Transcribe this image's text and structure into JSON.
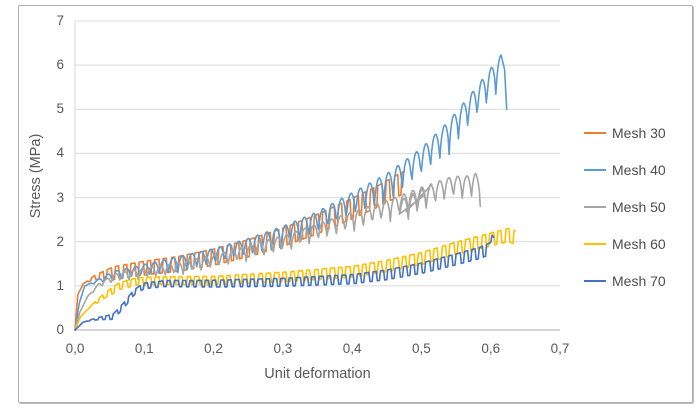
{
  "chart_data": {
    "type": "line",
    "title": "",
    "xlabel": "Unit deformation",
    "ylabel": "Stress (MPa)",
    "xlim": [
      0,
      0.7
    ],
    "ylim": [
      0,
      7
    ],
    "grid": "horizontal",
    "legend_position": "right",
    "decimal_separator": ",",
    "x_ticks": [
      0,
      0.1,
      0.2,
      0.3,
      0.4,
      0.5,
      0.6,
      0.7
    ],
    "x_tick_labels": [
      "0,0",
      "0,1",
      "0,2",
      "0,3",
      "0,4",
      "0,5",
      "0,6",
      "0,7"
    ],
    "y_ticks": [
      0,
      1,
      2,
      3,
      4,
      5,
      6,
      7
    ],
    "y_tick_labels": [
      "0",
      "1",
      "2",
      "3",
      "4",
      "5",
      "6",
      "7"
    ],
    "grid_color": "#D9D9D9",
    "axis_color": "#BFBFBF",
    "series": [
      {
        "name": "Mesh 30",
        "color": "#ED7D31",
        "trend_points": [
          [
            0,
            0
          ],
          [
            0.004,
            0.8
          ],
          [
            0.012,
            1.05
          ],
          [
            0.03,
            1.2
          ],
          [
            0.06,
            1.3
          ],
          [
            0.1,
            1.4
          ],
          [
            0.15,
            1.5
          ],
          [
            0.2,
            1.65
          ],
          [
            0.25,
            1.85
          ],
          [
            0.3,
            2.1
          ],
          [
            0.35,
            2.4
          ],
          [
            0.4,
            2.75
          ],
          [
            0.44,
            3.05
          ],
          [
            0.475,
            3.35
          ]
        ],
        "oscillation": {
          "shape": "square",
          "period": 0.0115,
          "amp_start": 0.26,
          "amp_end": 0.5
        }
      },
      {
        "name": "Mesh 40",
        "color": "#5B9BD5",
        "trend_points": [
          [
            0,
            0
          ],
          [
            0.006,
            0.6
          ],
          [
            0.014,
            1.0
          ],
          [
            0.05,
            1.15
          ],
          [
            0.1,
            1.3
          ],
          [
            0.15,
            1.45
          ],
          [
            0.2,
            1.6
          ],
          [
            0.25,
            1.8
          ],
          [
            0.3,
            2.05
          ],
          [
            0.35,
            2.35
          ],
          [
            0.4,
            2.75
          ],
          [
            0.45,
            3.15
          ],
          [
            0.5,
            3.7
          ],
          [
            0.54,
            4.3
          ],
          [
            0.58,
            5.05
          ],
          [
            0.615,
            5.75
          ],
          [
            0.62,
            5.9
          ],
          [
            0.623,
            5.0
          ]
        ],
        "oscillation": {
          "shape": "scallop",
          "period": 0.0135,
          "amp_start": 0.22,
          "amp_end": 0.85
        }
      },
      {
        "name": "Mesh 50",
        "color": "#A5A5A5",
        "trend_points": [
          [
            0,
            0
          ],
          [
            0.007,
            0.4
          ],
          [
            0.018,
            0.75
          ],
          [
            0.035,
            1.0
          ],
          [
            0.06,
            1.15
          ],
          [
            0.1,
            1.25
          ],
          [
            0.15,
            1.35
          ],
          [
            0.2,
            1.5
          ],
          [
            0.25,
            1.7
          ],
          [
            0.3,
            1.9
          ],
          [
            0.35,
            2.15
          ],
          [
            0.4,
            2.4
          ],
          [
            0.44,
            2.6
          ],
          [
            0.47,
            2.75
          ],
          [
            0.505,
            2.95
          ],
          [
            0.468,
            2.62
          ],
          [
            0.515,
            3.0
          ],
          [
            0.478,
            2.68
          ],
          [
            0.525,
            3.05
          ],
          [
            0.545,
            3.15
          ],
          [
            0.565,
            3.15
          ],
          [
            0.578,
            3.2
          ],
          [
            0.585,
            3.05
          ]
        ],
        "oscillation": {
          "shape": "scallop",
          "period": 0.013,
          "amp_start": 0.2,
          "amp_end": 0.6
        }
      },
      {
        "name": "Mesh 60",
        "color": "#FFC000",
        "trend_points": [
          [
            0,
            0
          ],
          [
            0.008,
            0.3
          ],
          [
            0.02,
            0.5
          ],
          [
            0.04,
            0.75
          ],
          [
            0.065,
            1.0
          ],
          [
            0.09,
            1.1
          ],
          [
            0.12,
            1.12
          ],
          [
            0.2,
            1.12
          ],
          [
            0.3,
            1.2
          ],
          [
            0.4,
            1.32
          ],
          [
            0.45,
            1.45
          ],
          [
            0.5,
            1.62
          ],
          [
            0.55,
            1.85
          ],
          [
            0.6,
            2.05
          ],
          [
            0.625,
            2.15
          ],
          [
            0.635,
            2.1
          ]
        ],
        "oscillation": {
          "shape": "square",
          "period": 0.0115,
          "amp_start": 0.14,
          "amp_end": 0.3
        }
      },
      {
        "name": "Mesh 70",
        "color": "#4472C4",
        "trend_points": [
          [
            0,
            0
          ],
          [
            0.012,
            0.18
          ],
          [
            0.03,
            0.25
          ],
          [
            0.055,
            0.3
          ],
          [
            0.07,
            0.55
          ],
          [
            0.085,
            0.85
          ],
          [
            0.1,
            1.0
          ],
          [
            0.13,
            1.05
          ],
          [
            0.2,
            1.05
          ],
          [
            0.3,
            1.08
          ],
          [
            0.4,
            1.15
          ],
          [
            0.45,
            1.25
          ],
          [
            0.5,
            1.4
          ],
          [
            0.55,
            1.6
          ],
          [
            0.585,
            1.75
          ],
          [
            0.6,
            1.85
          ],
          [
            0.602,
            2.15
          ],
          [
            0.604,
            2.1
          ]
        ],
        "oscillation": {
          "shape": "square",
          "period": 0.011,
          "amp_start": 0.1,
          "amp_end": 0.26
        }
      }
    ]
  }
}
